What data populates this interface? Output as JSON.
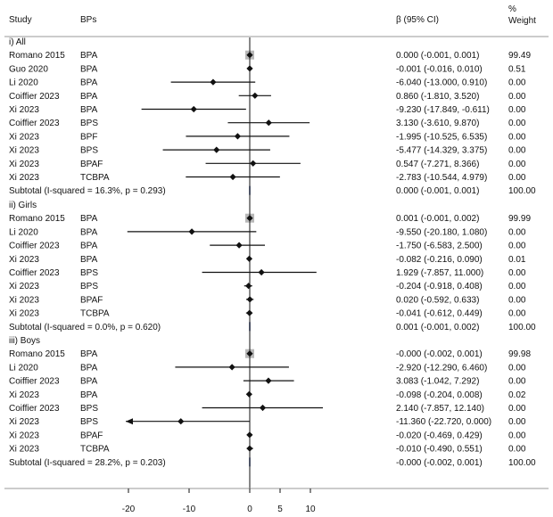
{
  "chart_data": {
    "type": "forest",
    "headers": {
      "study": "Study",
      "bps": "BPs",
      "effect": "β (95% CI)",
      "weight_line1": "%",
      "weight_line2": "Weight"
    },
    "x_axis": {
      "xlim": [
        -20,
        10
      ],
      "ticks": [
        -20,
        -10,
        0,
        5,
        10
      ],
      "tick_labels": [
        "-20",
        "-10",
        "0",
        "5",
        "10"
      ],
      "reference_line": 0
    },
    "groups": [
      {
        "label": "i) All",
        "rows": [
          {
            "study": "Romano 2015",
            "bp": "BPA",
            "est": 0.0,
            "lo": -0.001,
            "hi": 0.001,
            "ci_text": "0.000 (-0.001, 0.001)",
            "weight": "99.49",
            "box": true
          },
          {
            "study": "Guo 2020",
            "bp": "BPA",
            "est": -0.001,
            "lo": -0.016,
            "hi": 0.01,
            "ci_text": "-0.001 (-0.016, 0.010)",
            "weight": "0.51"
          },
          {
            "study": "Li 2020",
            "bp": "BPA",
            "est": -6.04,
            "lo": -13.0,
            "hi": 0.91,
            "ci_text": "-6.040 (-13.000, 0.910)",
            "weight": "0.00"
          },
          {
            "study": "Coiffier 2023",
            "bp": "BPA",
            "est": 0.86,
            "lo": -1.81,
            "hi": 3.52,
            "ci_text": "0.860 (-1.810, 3.520)",
            "weight": "0.00"
          },
          {
            "study": "Xi 2023",
            "bp": "BPA",
            "est": -9.23,
            "lo": -17.849,
            "hi": -0.611,
            "ci_text": "-9.230 (-17.849, -0.611)",
            "weight": "0.00"
          },
          {
            "study": "Coiffier 2023",
            "bp": "BPS",
            "est": 3.13,
            "lo": -3.61,
            "hi": 9.87,
            "ci_text": "3.130 (-3.610, 9.870)",
            "weight": "0.00"
          },
          {
            "study": "Xi 2023",
            "bp": "BPF",
            "est": -1.995,
            "lo": -10.525,
            "hi": 6.535,
            "ci_text": "-1.995 (-10.525, 6.535)",
            "weight": "0.00"
          },
          {
            "study": "Xi 2023",
            "bp": "BPS",
            "est": -5.477,
            "lo": -14.329,
            "hi": 3.375,
            "ci_text": "-5.477 (-14.329, 3.375)",
            "weight": "0.00"
          },
          {
            "study": "Xi 2023",
            "bp": "BPAF",
            "est": 0.547,
            "lo": -7.271,
            "hi": 8.366,
            "ci_text": "0.547 (-7.271, 8.366)",
            "weight": "0.00"
          },
          {
            "study": "Xi 2023",
            "bp": "TCBPA",
            "est": -2.783,
            "lo": -10.544,
            "hi": 4.979,
            "ci_text": "-2.783 (-10.544, 4.979)",
            "weight": "0.00"
          }
        ],
        "subtotal": {
          "label": "Subtotal  (I-squared = 16.3%, p = 0.293)",
          "est": 0.0,
          "lo": -0.001,
          "hi": 0.001,
          "ci_text": "0.000 (-0.001, 0.001)",
          "weight": "100.00"
        }
      },
      {
        "label": "ii) Girls",
        "rows": [
          {
            "study": "Romano 2015",
            "bp": "BPA",
            "est": 0.001,
            "lo": -0.001,
            "hi": 0.002,
            "ci_text": "0.001 (-0.001, 0.002)",
            "weight": "99.99",
            "box": true
          },
          {
            "study": "Li 2020",
            "bp": "BPA",
            "est": -9.55,
            "lo": -20.18,
            "hi": 1.08,
            "ci_text": "-9.550 (-20.180, 1.080)",
            "weight": "0.00"
          },
          {
            "study": "Coiffier 2023",
            "bp": "BPA",
            "est": -1.75,
            "lo": -6.583,
            "hi": 2.5,
            "ci_text": "-1.750 (-6.583, 2.500)",
            "weight": "0.00"
          },
          {
            "study": "Xi 2023",
            "bp": "BPA",
            "est": -0.082,
            "lo": -0.216,
            "hi": 0.09,
            "ci_text": "-0.082 (-0.216, 0.090)",
            "weight": "0.01"
          },
          {
            "study": "Coiffier 2023",
            "bp": "BPS",
            "est": 1.929,
            "lo": -7.857,
            "hi": 11.0,
            "ci_text": "1.929 (-7.857, 11.000)",
            "weight": "0.00"
          },
          {
            "study": "Xi 2023",
            "bp": "BPS",
            "est": -0.204,
            "lo": -0.918,
            "hi": 0.408,
            "ci_text": "-0.204 (-0.918, 0.408)",
            "weight": "0.00"
          },
          {
            "study": "Xi 2023",
            "bp": "BPAF",
            "est": 0.02,
            "lo": -0.592,
            "hi": 0.633,
            "ci_text": "0.020 (-0.592, 0.633)",
            "weight": "0.00"
          },
          {
            "study": "Xi 2023",
            "bp": "TCBPA",
            "est": -0.041,
            "lo": -0.612,
            "hi": 0.449,
            "ci_text": "-0.041 (-0.612, 0.449)",
            "weight": "0.00"
          }
        ],
        "subtotal": {
          "label": "Subtotal  (I-squared = 0.0%, p = 0.620)",
          "est": 0.001,
          "lo": -0.001,
          "hi": 0.002,
          "ci_text": "0.001 (-0.001, 0.002)",
          "weight": "100.00"
        }
      },
      {
        "label": "iii) Boys",
        "rows": [
          {
            "study": "Romano 2015",
            "bp": "BPA",
            "est": -0.0,
            "lo": -0.002,
            "hi": 0.001,
            "ci_text": "-0.000 (-0.002, 0.001)",
            "weight": "99.98",
            "box": true
          },
          {
            "study": "Li 2020",
            "bp": "BPA",
            "est": -2.92,
            "lo": -12.29,
            "hi": 6.46,
            "ci_text": "-2.920 (-12.290, 6.460)",
            "weight": "0.00"
          },
          {
            "study": "Coiffier 2023",
            "bp": "BPA",
            "est": 3.083,
            "lo": -1.042,
            "hi": 7.292,
            "ci_text": "3.083 (-1.042, 7.292)",
            "weight": "0.00"
          },
          {
            "study": "Xi 2023",
            "bp": "BPA",
            "est": -0.098,
            "lo": -0.204,
            "hi": 0.008,
            "ci_text": "-0.098 (-0.204, 0.008)",
            "weight": "0.02"
          },
          {
            "study": "Coiffier 2023",
            "bp": "BPS",
            "est": 2.14,
            "lo": -7.857,
            "hi": 12.14,
            "ci_text": "2.140 (-7.857, 12.140)",
            "weight": "0.00"
          },
          {
            "study": "Xi 2023",
            "bp": "BPS",
            "est": -11.36,
            "lo": -22.72,
            "hi": 0.0,
            "ci_text": "-11.360 (-22.720, 0.000)",
            "weight": "0.00",
            "arrow_left": true
          },
          {
            "study": "Xi 2023",
            "bp": "BPAF",
            "est": -0.02,
            "lo": -0.469,
            "hi": 0.429,
            "ci_text": "-0.020 (-0.469, 0.429)",
            "weight": "0.00"
          },
          {
            "study": "Xi 2023",
            "bp": "TCBPA",
            "est": -0.01,
            "lo": -0.49,
            "hi": 0.551,
            "ci_text": "-0.010 (-0.490, 0.551)",
            "weight": "0.00"
          }
        ],
        "subtotal": {
          "label": "Subtotal  (I-squared = 28.2%, p = 0.203)",
          "est": -0.0,
          "lo": -0.002,
          "hi": 0.001,
          "ci_text": "-0.000 (-0.002, 0.001)",
          "weight": "100.00"
        }
      }
    ]
  },
  "colors": {
    "ink": "#111111",
    "box": "#b8b8b8",
    "subtotal_tick": "#3a4f8c",
    "rule": "#9a9a9a"
  }
}
